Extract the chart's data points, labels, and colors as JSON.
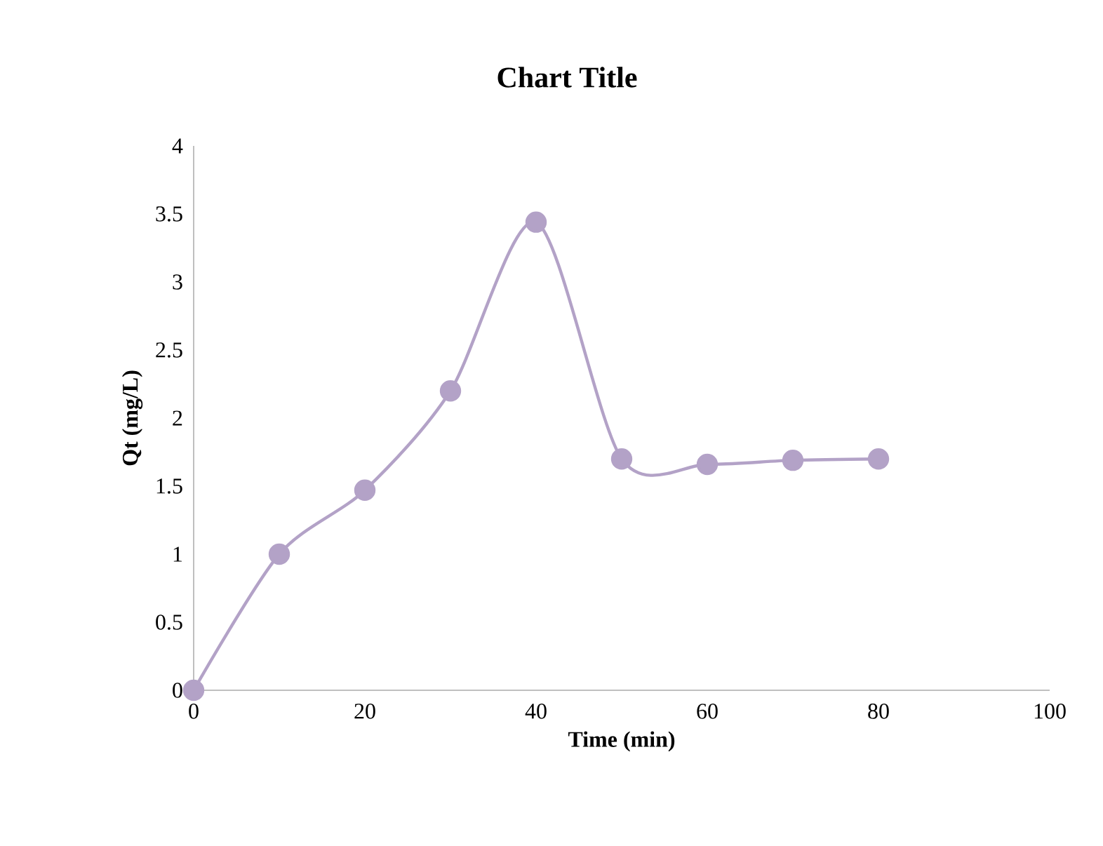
{
  "chart_data": {
    "type": "line",
    "title": "Chart Title",
    "xlabel": "Time (min)",
    "ylabel": "Qt (mg/L)",
    "x": [
      0,
      10,
      20,
      30,
      40,
      50,
      60,
      70,
      80
    ],
    "series": [
      {
        "color": "#b3a2c7",
        "values": [
          0,
          1.0,
          1.47,
          2.2,
          3.44,
          1.7,
          1.66,
          1.69,
          1.7
        ]
      }
    ],
    "xlim": [
      0,
      100
    ],
    "ylim": [
      0,
      4
    ],
    "xticks": [
      0,
      20,
      40,
      60,
      80,
      100
    ],
    "yticks": [
      0,
      0.5,
      1,
      1.5,
      2,
      2.5,
      3,
      3.5,
      4
    ],
    "marker": "circle",
    "line_style": "solid"
  }
}
